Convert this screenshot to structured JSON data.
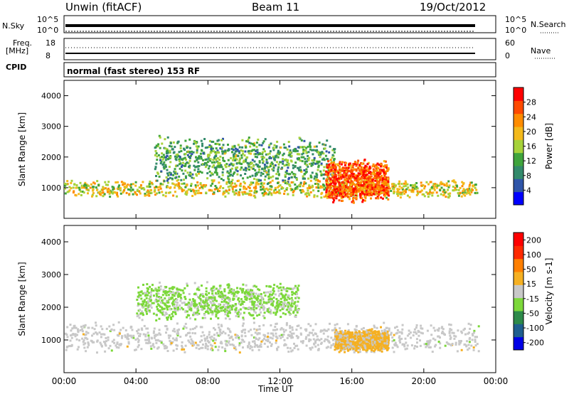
{
  "header": {
    "station": "Unwin (fitACF)",
    "beam": "Beam 11",
    "date": "19/Oct/2012"
  },
  "top_panels": {
    "nsky_label": "N.Sky",
    "nsky_ticks": [
      "10^5",
      "10^0"
    ],
    "nsearch_label": "N.Search",
    "freq_label": "Freq.",
    "freq_unit": "[MHz]",
    "freq_ticks": [
      "18",
      "8"
    ],
    "nave_ticks": [
      "60",
      "0"
    ],
    "nave_label": "Nave",
    "cpid_label": "CPID",
    "cpid_value": "normal (fast stereo) 153 RF"
  },
  "colors": {
    "power": [
      "#0000ff",
      "#2f55a8",
      "#338a6b",
      "#3fa43c",
      "#a6d23a",
      "#f3b91b",
      "#ff8c00",
      "#ff4a00",
      "#ff0000"
    ],
    "velocity": [
      "#0000e6",
      "#1f5f8f",
      "#2d8a4a",
      "#7cd83a",
      "#c8c8c8",
      "#f5b022",
      "#ff7f00",
      "#ff2a00",
      "#ff0000"
    ]
  },
  "chart_data": [
    {
      "type": "heatmap",
      "title": "",
      "xlabel": "Time UT",
      "ylabel": "Slant Range [km]",
      "xlim": [
        0,
        24
      ],
      "ylim": [
        0,
        4500
      ],
      "x_tick_labels": [
        "00:00",
        "04:00",
        "08:00",
        "12:00",
        "16:00",
        "20:00",
        "00:00"
      ],
      "y_tick_labels": [
        "1000",
        "2000",
        "3000",
        "4000"
      ],
      "colorbar": {
        "label": "Power [dB]",
        "range": [
          0,
          32
        ],
        "tick_labels": [
          "4",
          "8",
          "12",
          "16",
          "20",
          "24",
          "28"
        ]
      },
      "features": [
        {
          "t_start": 0,
          "t_end": 23,
          "range_center": 1000,
          "range_width": 250,
          "value": 18
        },
        {
          "t_start": 5,
          "t_end": 15,
          "range_center": 1900,
          "range_width": 700,
          "value": 12
        },
        {
          "t_start": 14.5,
          "t_end": 18,
          "range_center": 1250,
          "range_width": 600,
          "value": 26
        }
      ]
    },
    {
      "type": "heatmap",
      "title": "",
      "xlabel": "Time UT",
      "ylabel": "Slant Range [km]",
      "xlim": [
        0,
        24
      ],
      "ylim": [
        0,
        4500
      ],
      "x_tick_labels": [
        "00:00",
        "04:00",
        "08:00",
        "12:00",
        "16:00",
        "20:00",
        "00:00"
      ],
      "y_tick_labels": [
        "1000",
        "2000",
        "3000",
        "4000"
      ],
      "colorbar": {
        "label": "Velocity [m s-1]",
        "range": [
          -250,
          250
        ],
        "tick_labels": [
          "200",
          "100",
          "50",
          "15",
          "-15",
          "-50",
          "-100",
          "-200"
        ]
      },
      "features": [
        {
          "t_start": 0,
          "t_end": 23,
          "range_center": 1100,
          "range_width": 400,
          "value": 0
        },
        {
          "t_start": 4,
          "t_end": 13,
          "range_center": 2200,
          "range_width": 500,
          "value": -40
        },
        {
          "t_start": 15,
          "t_end": 18,
          "range_center": 1000,
          "range_width": 300,
          "value": 40
        }
      ]
    }
  ]
}
